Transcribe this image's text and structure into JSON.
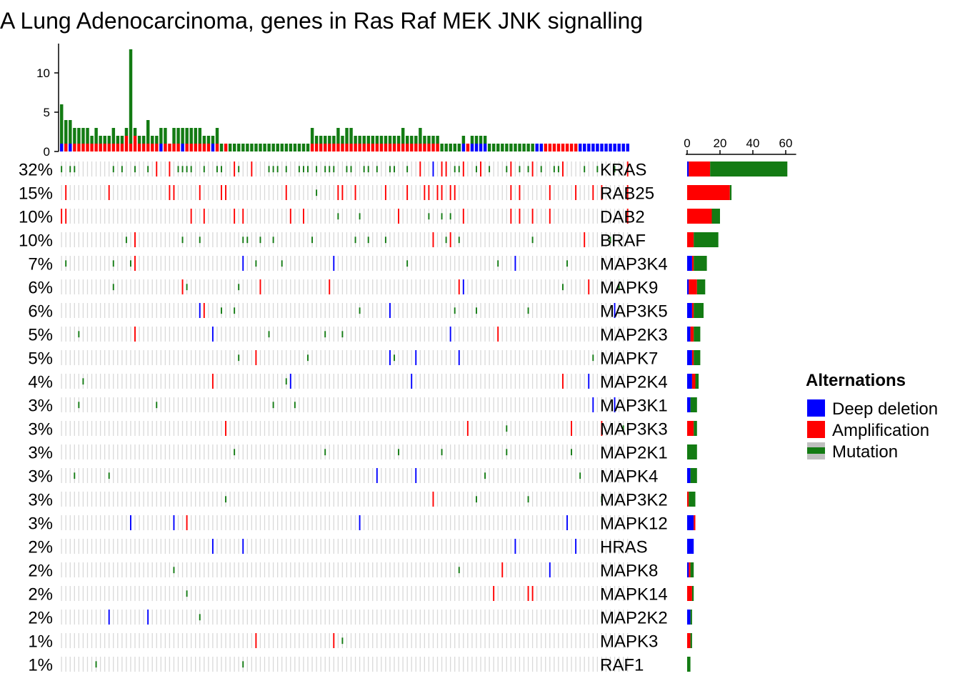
{
  "chart_data": {
    "type": "oncoprint",
    "title": "A Lung Adenocarcinoma, genes in Ras Raf MEK JNK signalling",
    "colors": {
      "deep_deletion": "#0000ff",
      "amplification": "#ff0000",
      "mutation": "#137b13",
      "background": "#d9d9d9"
    },
    "top_axis": {
      "ticks": [
        0,
        5,
        10
      ],
      "ylim": [
        0,
        13
      ]
    },
    "right_axis": {
      "ticks": [
        0,
        20,
        40,
        60
      ],
      "xlim": [
        0,
        62
      ]
    },
    "genes": [
      {
        "name": "KRAS",
        "pct": "32%",
        "del": 1,
        "amp": 13,
        "mut": 47
      },
      {
        "name": "RAB25",
        "pct": "15%",
        "del": 0,
        "amp": 26,
        "mut": 1
      },
      {
        "name": "DAB2",
        "pct": "10%",
        "del": 0,
        "amp": 15,
        "mut": 5
      },
      {
        "name": "BRAF",
        "pct": "10%",
        "del": 0,
        "amp": 4,
        "mut": 15
      },
      {
        "name": "MAP3K4",
        "pct": "7%",
        "del": 3,
        "amp": 1,
        "mut": 8
      },
      {
        "name": "MAPK9",
        "pct": "6%",
        "del": 1,
        "amp": 5,
        "mut": 5
      },
      {
        "name": "MAP3K5",
        "pct": "6%",
        "del": 3,
        "amp": 1,
        "mut": 6
      },
      {
        "name": "MAP2K3",
        "pct": "5%",
        "del": 2,
        "amp": 2,
        "mut": 4
      },
      {
        "name": "MAPK7",
        "pct": "5%",
        "del": 3,
        "amp": 1,
        "mut": 4
      },
      {
        "name": "MAP2K4",
        "pct": "4%",
        "del": 3,
        "amp": 2,
        "mut": 2
      },
      {
        "name": "MAP3K1",
        "pct": "3%",
        "del": 2,
        "amp": 0,
        "mut": 4
      },
      {
        "name": "MAP3K3",
        "pct": "3%",
        "del": 0,
        "amp": 4,
        "mut": 2
      },
      {
        "name": "MAP2K1",
        "pct": "3%",
        "del": 0,
        "amp": 0,
        "mut": 6
      },
      {
        "name": "MAPK4",
        "pct": "3%",
        "del": 2,
        "amp": 0,
        "mut": 4
      },
      {
        "name": "MAP3K2",
        "pct": "3%",
        "del": 0,
        "amp": 1,
        "mut": 4
      },
      {
        "name": "MAPK12",
        "pct": "3%",
        "del": 4,
        "amp": 1,
        "mut": 0
      },
      {
        "name": "HRAS",
        "pct": "2%",
        "del": 4,
        "amp": 0,
        "mut": 0
      },
      {
        "name": "MAPK8",
        "pct": "2%",
        "del": 1,
        "amp": 1,
        "mut": 2
      },
      {
        "name": "MAPK14",
        "pct": "2%",
        "del": 0,
        "amp": 3,
        "mut": 1
      },
      {
        "name": "MAP2K2",
        "pct": "2%",
        "del": 2,
        "amp": 0,
        "mut": 1
      },
      {
        "name": "MAPK3",
        "pct": "1%",
        "del": 0,
        "amp": 2,
        "mut": 1
      },
      {
        "name": "RAF1",
        "pct": "1%",
        "del": 0,
        "amp": 0,
        "mut": 2
      }
    ],
    "sample_alterations": [
      [
        1,
        0,
        5
      ],
      [
        0,
        1,
        3
      ],
      [
        1,
        0,
        3
      ],
      [
        0,
        1,
        2
      ],
      [
        0,
        1,
        2
      ],
      [
        0,
        1,
        2
      ],
      [
        0,
        1,
        2
      ],
      [
        0,
        1,
        1
      ],
      [
        0,
        1,
        2
      ],
      [
        0,
        1,
        1
      ],
      [
        0,
        1,
        1
      ],
      [
        0,
        1,
        1
      ],
      [
        0,
        1,
        2
      ],
      [
        0,
        1,
        1
      ],
      [
        0,
        1,
        1
      ],
      [
        0,
        2,
        1
      ],
      [
        0,
        1,
        12
      ],
      [
        0,
        2,
        1
      ],
      [
        0,
        1,
        1
      ],
      [
        0,
        1,
        1
      ],
      [
        0,
        1,
        3
      ],
      [
        0,
        1,
        1
      ],
      [
        0,
        1,
        1
      ],
      [
        1,
        0,
        2
      ],
      [
        0,
        1,
        2
      ],
      [
        0,
        1,
        0
      ],
      [
        0,
        1,
        2
      ],
      [
        0,
        1,
        2
      ],
      [
        1,
        0,
        2
      ],
      [
        0,
        1,
        2
      ],
      [
        0,
        1,
        2
      ],
      [
        0,
        1,
        2
      ],
      [
        0,
        1,
        2
      ],
      [
        0,
        1,
        1
      ],
      [
        0,
        1,
        1
      ],
      [
        1,
        0,
        1
      ],
      [
        0,
        1,
        2
      ],
      [
        0,
        0,
        1
      ],
      [
        0,
        1,
        0
      ],
      [
        0,
        0,
        1
      ],
      [
        0,
        0,
        1
      ],
      [
        0,
        0,
        1
      ],
      [
        0,
        0,
        1
      ],
      [
        0,
        0,
        1
      ],
      [
        0,
        0,
        1
      ],
      [
        0,
        0,
        1
      ],
      [
        0,
        0,
        1
      ],
      [
        0,
        0,
        1
      ],
      [
        0,
        0,
        1
      ],
      [
        0,
        0,
        1
      ],
      [
        0,
        0,
        1
      ],
      [
        0,
        0,
        1
      ],
      [
        0,
        0,
        1
      ],
      [
        0,
        0,
        1
      ],
      [
        0,
        0,
        1
      ],
      [
        0,
        0,
        1
      ],
      [
        0,
        0,
        1
      ],
      [
        0,
        0,
        1
      ],
      [
        0,
        1,
        2
      ],
      [
        0,
        1,
        1
      ],
      [
        0,
        1,
        1
      ],
      [
        0,
        1,
        1
      ],
      [
        0,
        1,
        1
      ],
      [
        0,
        1,
        1
      ],
      [
        0,
        1,
        2
      ],
      [
        0,
        1,
        1
      ],
      [
        0,
        1,
        2
      ],
      [
        0,
        1,
        2
      ],
      [
        0,
        1,
        1
      ],
      [
        0,
        1,
        1
      ],
      [
        0,
        1,
        1
      ],
      [
        0,
        1,
        1
      ],
      [
        0,
        1,
        1
      ],
      [
        0,
        1,
        1
      ],
      [
        0,
        1,
        1
      ],
      [
        0,
        1,
        1
      ],
      [
        0,
        1,
        1
      ],
      [
        0,
        1,
        1
      ],
      [
        0,
        1,
        1
      ],
      [
        0,
        1,
        2
      ],
      [
        0,
        1,
        1
      ],
      [
        0,
        1,
        1
      ],
      [
        0,
        1,
        1
      ],
      [
        0,
        1,
        2
      ],
      [
        0,
        1,
        1
      ],
      [
        0,
        1,
        1
      ],
      [
        0,
        1,
        1
      ],
      [
        0,
        1,
        1
      ],
      [
        0,
        0,
        1
      ],
      [
        0,
        0,
        1
      ],
      [
        0,
        0,
        1
      ],
      [
        0,
        0,
        1
      ],
      [
        0,
        0,
        1
      ],
      [
        1,
        0,
        1
      ],
      [
        0,
        1,
        0
      ],
      [
        1,
        0,
        1
      ],
      [
        1,
        0,
        1
      ],
      [
        1,
        0,
        1
      ],
      [
        1,
        0,
        1
      ],
      [
        0,
        0,
        1
      ],
      [
        0,
        0,
        1
      ],
      [
        0,
        0,
        1
      ],
      [
        0,
        0,
        1
      ],
      [
        0,
        0,
        1
      ],
      [
        0,
        0,
        1
      ],
      [
        0,
        0,
        1
      ],
      [
        0,
        0,
        1
      ],
      [
        0,
        0,
        1
      ],
      [
        0,
        0,
        1
      ],
      [
        0,
        0,
        1
      ],
      [
        1,
        0,
        0
      ],
      [
        1,
        0,
        0
      ],
      [
        0,
        1,
        0
      ],
      [
        0,
        1,
        0
      ],
      [
        0,
        1,
        0
      ],
      [
        0,
        1,
        0
      ],
      [
        0,
        1,
        0
      ],
      [
        0,
        1,
        0
      ],
      [
        0,
        1,
        0
      ],
      [
        0,
        1,
        0
      ],
      [
        1,
        0,
        0
      ],
      [
        1,
        0,
        0
      ],
      [
        1,
        0,
        0
      ],
      [
        1,
        0,
        0
      ],
      [
        1,
        0,
        0
      ],
      [
        1,
        0,
        0
      ],
      [
        1,
        0,
        0
      ],
      [
        1,
        0,
        0
      ],
      [
        1,
        0,
        0
      ],
      [
        1,
        0,
        0
      ],
      [
        1,
        0,
        0
      ],
      [
        1,
        0,
        0
      ]
    ]
  },
  "legend": {
    "title": "Alternations",
    "items": [
      {
        "label": "Deep deletion",
        "key": "deep_deletion"
      },
      {
        "label": "Amplification",
        "key": "amplification"
      },
      {
        "label": "Mutation",
        "key": "mutation"
      }
    ]
  }
}
